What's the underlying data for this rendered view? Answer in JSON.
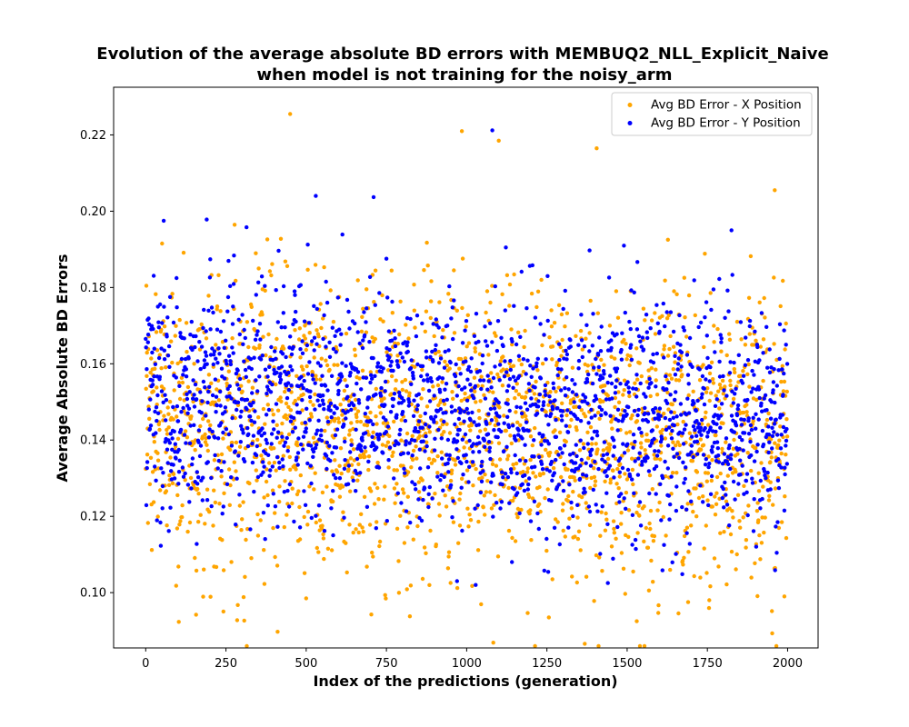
{
  "chart_data": {
    "type": "scatter",
    "title_line1": "Evolution of the average absolute BD errors with MEMBUQ2_NLL_Explicit_Naive",
    "title_line2": "when model is not training for the noisy_arm",
    "xlabel": "Index of the predictions (generation)",
    "ylabel": "Average Absolute BD Errors",
    "xlim": [
      -100,
      2095
    ],
    "ylim": [
      0.0855,
      0.2325
    ],
    "xticks": [
      0,
      250,
      500,
      750,
      1000,
      1250,
      1500,
      1750,
      2000
    ],
    "xtick_labels": [
      "0",
      "250",
      "500",
      "750",
      "1000",
      "1250",
      "1500",
      "1750",
      "2000"
    ],
    "yticks": [
      0.1,
      0.12,
      0.14,
      0.16,
      0.18,
      0.2,
      0.22
    ],
    "ytick_labels": [
      "0.10",
      "0.12",
      "0.14",
      "0.16",
      "0.18",
      "0.20",
      "0.22"
    ],
    "grid": false,
    "legend_position": "upper right",
    "series": [
      {
        "name": "Avg BD Error - X Position",
        "color": "#ffa500",
        "n_points": 2000,
        "mean": 0.143,
        "std": 0.019,
        "noted_extremes": [
          [
            450,
            0.2255
          ],
          [
            1530,
            0.0925
          ],
          [
            500,
            0.0985
          ],
          [
            1990,
            0.099
          ],
          [
            985,
            0.221
          ],
          [
            1100,
            0.2185
          ],
          [
            1405,
            0.2165
          ],
          [
            1960,
            0.2055
          ]
        ]
      },
      {
        "name": "Avg BD Error - Y Position",
        "color": "#0000ff",
        "n_points": 2000,
        "mean": 0.147,
        "std": 0.015,
        "noted_extremes": [
          [
            1080,
            0.2212
          ],
          [
            530,
            0.204
          ],
          [
            710,
            0.2037
          ],
          [
            190,
            0.1978
          ],
          [
            1825,
            0.195
          ],
          [
            970,
            0.103
          ],
          [
            1440,
            0.1025
          ]
        ]
      }
    ]
  }
}
